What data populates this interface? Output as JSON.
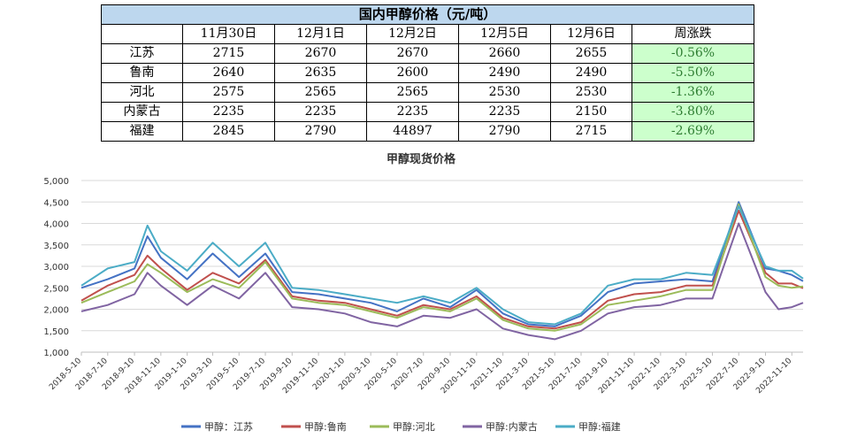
{
  "table": {
    "title": "国内甲醇价格（元/吨）",
    "headers": [
      "",
      "11月30日",
      "12月1日",
      "12月2日",
      "12月5日",
      "12月6日",
      "周涨跌"
    ],
    "rows": [
      {
        "region": "江苏",
        "values": [
          "2715",
          "2670",
          "2670",
          "2660",
          "2655"
        ],
        "change": "-0.56%"
      },
      {
        "region": "鲁南",
        "values": [
          "2640",
          "2635",
          "2600",
          "2490",
          "2490"
        ],
        "change": "-5.50%"
      },
      {
        "region": "河北",
        "values": [
          "2575",
          "2565",
          "2565",
          "2530",
          "2530"
        ],
        "change": "-1.36%"
      },
      {
        "region": "内蒙古",
        "values": [
          "2235",
          "2235",
          "2235",
          "2235",
          "2150"
        ],
        "change": "-3.80%"
      },
      {
        "region": "福建",
        "values": [
          "2845",
          "2790",
          "44897",
          "2790",
          "2715"
        ],
        "change": "-2.69%"
      }
    ]
  },
  "chart_data": {
    "type": "line",
    "title": "甲醇现货价格",
    "ylim": [
      1000,
      5000
    ],
    "yticks": [
      "1,000",
      "1,500",
      "2,000",
      "2,500",
      "3,000",
      "3,500",
      "4,000",
      "4,500",
      "5,000"
    ],
    "ytick_values": [
      1000,
      1500,
      2000,
      2500,
      3000,
      3500,
      4000,
      4500,
      5000
    ],
    "xticks": [
      "2018-5-10",
      "2018-7-10",
      "2018-9-10",
      "2018-11-10",
      "2019-1-10",
      "2019-3-10",
      "2019-5-10",
      "2019-7-10",
      "2019-9-10",
      "2019-11-10",
      "2020-1-10",
      "2020-3-10",
      "2020-5-10",
      "2020-7-10",
      "2020-9-10",
      "2020-11-10",
      "2021-1-10",
      "2021-3-10",
      "2021-5-10",
      "2021-7-10",
      "2021-9-10",
      "2021-11-10",
      "2022-1-10",
      "2022-3-10",
      "2022-5-10",
      "2022-7-10",
      "2022-9-10",
      "2022-11-10"
    ],
    "x": [
      "2018-5-10",
      "2018-7-10",
      "2018-9-10",
      "2018-10-10",
      "2018-11-10",
      "2019-1-10",
      "2019-3-10",
      "2019-5-10",
      "2019-7-10",
      "2019-9-10",
      "2019-11-10",
      "2020-1-10",
      "2020-3-10",
      "2020-5-10",
      "2020-7-10",
      "2020-9-10",
      "2020-11-10",
      "2021-1-10",
      "2021-3-10",
      "2021-5-10",
      "2021-7-10",
      "2021-9-10",
      "2021-11-10",
      "2022-1-10",
      "2022-3-10",
      "2022-5-10",
      "2022-7-10",
      "2022-9-10",
      "2022-10-10",
      "2022-11-10",
      "2022-12-6"
    ],
    "grid": true,
    "legend_position": "bottom",
    "series": [
      {
        "name": "甲醇：江苏",
        "color": "#4472c4",
        "values": [
          2500,
          2700,
          2950,
          3700,
          3200,
          2700,
          3300,
          2750,
          3300,
          2400,
          2350,
          2250,
          2150,
          1950,
          2250,
          2050,
          2450,
          1900,
          1650,
          1600,
          1850,
          2400,
          2600,
          2650,
          2700,
          2650,
          4500,
          2950,
          2900,
          2800,
          2655
        ]
      },
      {
        "name": "甲醇:鲁南",
        "color": "#c0504d",
        "values": [
          2200,
          2550,
          2800,
          3250,
          2950,
          2450,
          2850,
          2600,
          3150,
          2300,
          2200,
          2150,
          2000,
          1850,
          2100,
          2000,
          2300,
          1800,
          1600,
          1550,
          1700,
          2200,
          2350,
          2400,
          2550,
          2550,
          4300,
          2850,
          2600,
          2600,
          2490
        ]
      },
      {
        "name": "甲醇:河北",
        "color": "#9bbb59",
        "values": [
          2150,
          2400,
          2650,
          3050,
          2850,
          2400,
          2700,
          2500,
          3100,
          2250,
          2150,
          2100,
          1950,
          1800,
          2050,
          1950,
          2250,
          1750,
          1550,
          1500,
          1650,
          2100,
          2200,
          2300,
          2450,
          2450,
          4450,
          2750,
          2550,
          2500,
          2530
        ]
      },
      {
        "name": "甲醇:内蒙古",
        "color": "#8064a2",
        "values": [
          1950,
          2100,
          2350,
          2850,
          2550,
          2100,
          2550,
          2250,
          2850,
          2050,
          2000,
          1900,
          1700,
          1600,
          1850,
          1800,
          2000,
          1550,
          1400,
          1300,
          1500,
          1900,
          2050,
          2100,
          2250,
          2250,
          4000,
          2400,
          2000,
          2050,
          2150
        ]
      },
      {
        "name": "甲醇:福建",
        "color": "#4bacc6",
        "values": [
          2550,
          2950,
          3100,
          3950,
          3350,
          2900,
          3550,
          3000,
          3550,
          2500,
          2450,
          2350,
          2250,
          2150,
          2300,
          2150,
          2500,
          2000,
          1700,
          1650,
          1900,
          2550,
          2700,
          2700,
          2850,
          2800,
          4400,
          3000,
          2900,
          2900,
          2715
        ]
      }
    ]
  }
}
